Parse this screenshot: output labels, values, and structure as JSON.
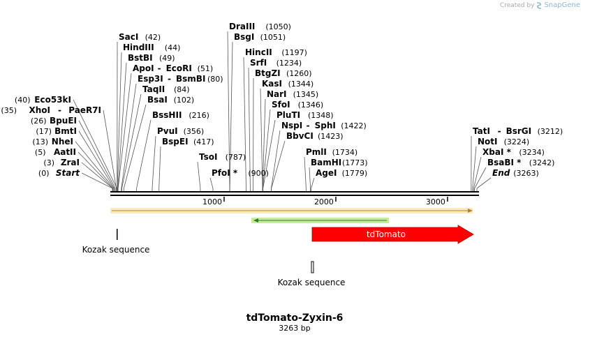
{
  "watermark": {
    "prefix": "Created by",
    "brand": "SnapGene"
  },
  "plasmid": {
    "name": "tdTomato-Zyxin-6",
    "length_label": "3263 bp",
    "length": 3263
  },
  "ticks": [
    {
      "pos": 1000,
      "label": "1000"
    },
    {
      "pos": 2000,
      "label": "2000"
    },
    {
      "pos": 3000,
      "label": "3000"
    }
  ],
  "sites": [
    {
      "name": "Start",
      "pos": "(0)",
      "bp": 0,
      "italic": true,
      "side": "left"
    },
    {
      "name": "ZraI",
      "pos": "(3)",
      "bp": 3,
      "side": "left"
    },
    {
      "name": "AatII",
      "pos": "(5)",
      "bp": 5,
      "side": "left"
    },
    {
      "name": "NheI",
      "pos": "(13)",
      "bp": 13,
      "side": "left"
    },
    {
      "name": "BmtI",
      "pos": "(17)",
      "bp": 17,
      "side": "left"
    },
    {
      "name": "BpuEI",
      "pos": "(26)",
      "bp": 26,
      "side": "left"
    },
    {
      "name": "XhoI",
      "name2": "PaeR7I",
      "pos": "(35)",
      "bp": 35,
      "side": "left"
    },
    {
      "name": "Eco53kI",
      "pos": "(40)",
      "bp": 40,
      "side": "left"
    },
    {
      "name": "SacI",
      "pos": "(42)",
      "bp": 42,
      "side": "right"
    },
    {
      "name": "HindIII",
      "pos": "(44)",
      "bp": 44,
      "side": "right"
    },
    {
      "name": "BstBI",
      "pos": "(49)",
      "bp": 49,
      "side": "right"
    },
    {
      "name": "ApoI",
      "name2": "EcoRI",
      "pos": "(51)",
      "bp": 51,
      "side": "right"
    },
    {
      "name": "Esp3I",
      "name2": "BsmBI",
      "pos": "(80)",
      "bp": 80,
      "side": "right"
    },
    {
      "name": "TaqII",
      "pos": "(84)",
      "bp": 84,
      "side": "right"
    },
    {
      "name": "BsaI",
      "pos": "(102)",
      "bp": 102,
      "side": "right"
    },
    {
      "name": "BssHII",
      "pos": "(216)",
      "bp": 216,
      "side": "right"
    },
    {
      "name": "PvuI",
      "pos": "(356)",
      "bp": 356,
      "side": "right"
    },
    {
      "name": "BspEI",
      "pos": "(417)",
      "bp": 417,
      "side": "right"
    },
    {
      "name": "TsoI",
      "pos": "(787)",
      "bp": 787,
      "side": "right"
    },
    {
      "name": "PfoI *",
      "pos": "(900)",
      "bp": 900,
      "side": "right"
    },
    {
      "name": "DraIII",
      "pos": "(1050)",
      "bp": 1050,
      "side": "right"
    },
    {
      "name": "BsgI",
      "pos": "(1051)",
      "bp": 1051,
      "side": "right"
    },
    {
      "name": "HincII",
      "pos": "(1197)",
      "bp": 1197,
      "side": "right"
    },
    {
      "name": "SrfI",
      "pos": "(1234)",
      "bp": 1234,
      "side": "right"
    },
    {
      "name": "BtgZI",
      "pos": "(1260)",
      "bp": 1260,
      "side": "right"
    },
    {
      "name": "KasI",
      "pos": "(1344)",
      "bp": 1344,
      "side": "right"
    },
    {
      "name": "NarI",
      "pos": "(1345)",
      "bp": 1345,
      "side": "right"
    },
    {
      "name": "SfoI",
      "pos": "(1346)",
      "bp": 1346,
      "side": "right"
    },
    {
      "name": "PluTI",
      "pos": "(1348)",
      "bp": 1348,
      "side": "right"
    },
    {
      "name": "NspI",
      "name2": "SphI",
      "pos": "(1422)",
      "bp": 1422,
      "side": "right"
    },
    {
      "name": "BbvCI",
      "pos": "(1423)",
      "bp": 1423,
      "side": "right"
    },
    {
      "name": "PmlI",
      "pos": "(1734)",
      "bp": 1734,
      "side": "right"
    },
    {
      "name": "BamHI",
      "pos": "(1773)",
      "bp": 1773,
      "side": "right"
    },
    {
      "name": "AgeI",
      "pos": "(1779)",
      "bp": 1779,
      "side": "right"
    },
    {
      "name": "TatI",
      "name2": "BsrGI",
      "pos": "(3212)",
      "bp": 3212,
      "side": "right"
    },
    {
      "name": "NotI",
      "pos": "(3224)",
      "bp": 3224,
      "side": "right"
    },
    {
      "name": "XbaI *",
      "pos": "(3234)",
      "bp": 3234,
      "side": "right"
    },
    {
      "name": "BsaBI *",
      "pos": "(3242)",
      "bp": 3242,
      "side": "right"
    },
    {
      "name": "End",
      "pos": "(3263)",
      "bp": 3263,
      "italic": true,
      "side": "right"
    }
  ],
  "features": [
    {
      "label": "tdTomato",
      "color": "#ff0000"
    },
    {
      "label": "Kozak sequence"
    },
    {
      "label": "Kozak sequence"
    }
  ],
  "colors": {
    "backbone": "#000000",
    "orange_feature": "#f5a623",
    "green_feature": "#6abf4b",
    "tdtomato": "#ff0000"
  }
}
